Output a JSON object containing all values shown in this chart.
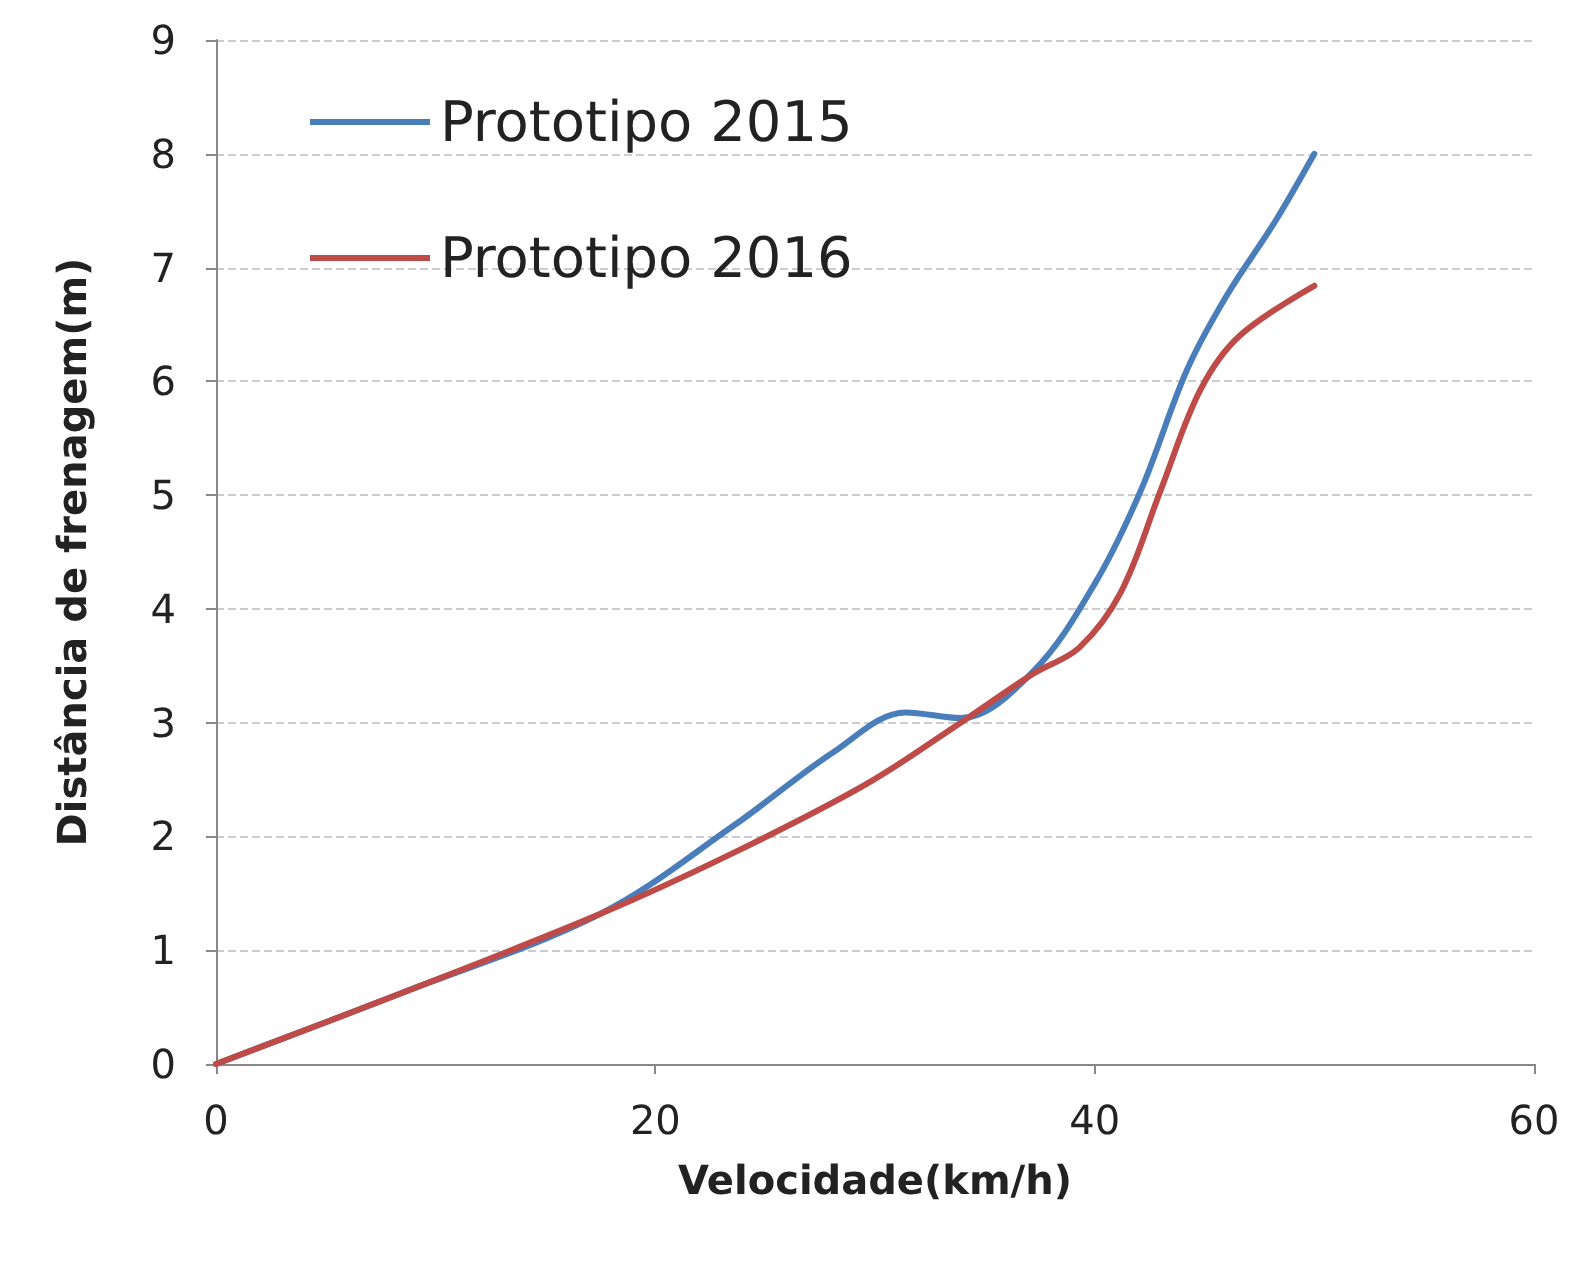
{
  "chart_data": {
    "type": "line",
    "xlabel": "Velocidade(km/h)",
    "ylabel": "Distância de frenagem(m)",
    "xlim": [
      0,
      60
    ],
    "xticks": [
      0,
      20,
      40,
      60
    ],
    "ylim": [
      0,
      9
    ],
    "yticks": [
      0,
      1,
      2,
      3,
      4,
      5,
      6,
      7,
      8,
      9
    ],
    "grid": "y",
    "legend": "top left",
    "line_style": "solid",
    "series": [
      {
        "name": "Prototipo 2015",
        "color": "#4a7ebb",
        "x": [
          0,
          8.4,
          17.5,
          23.6,
          28.1,
          31.4,
          33.9,
          37.2,
          40,
          42.1,
          44.2,
          46,
          48.2,
          50
        ],
        "values": [
          0,
          0.62,
          1.32,
          2.1,
          2.74,
          3.09,
          3.04,
          3.45,
          4.22,
          5.04,
          6.1,
          6.75,
          7.4,
          8.0
        ]
      },
      {
        "name": "Prototipo 2016",
        "color": "#be4b48",
        "x": [
          0,
          8.4,
          17.5,
          23.6,
          29.6,
          33.9,
          37.2,
          39.3,
          41.2,
          43,
          44.8,
          46.6,
          50
        ],
        "values": [
          0,
          0.62,
          1.32,
          1.86,
          2.46,
          3.0,
          3.43,
          3.66,
          4.15,
          5.04,
          5.92,
          6.4,
          6.84
        ]
      }
    ]
  }
}
